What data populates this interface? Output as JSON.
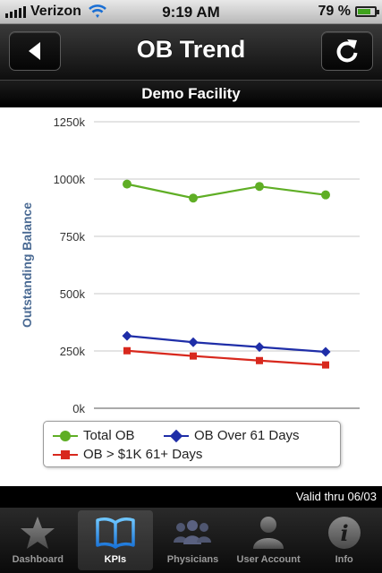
{
  "status_bar": {
    "carrier": "Verizon",
    "time": "9:19 AM",
    "battery": "79 %",
    "battery_level": 0.79
  },
  "nav": {
    "title": "OB Trend",
    "back_icon": "back-arrow-icon",
    "refresh_icon": "refresh-icon"
  },
  "facility": "Demo Facility",
  "chart_data": {
    "type": "line",
    "x": [
      1,
      2,
      3,
      4
    ],
    "ylabel": "Outstanding Balance",
    "ylim": [
      0,
      1250000
    ],
    "yticks": [
      "0k",
      "250k",
      "500k",
      "750k",
      "1000k",
      "1250k"
    ],
    "ytick_values": [
      0,
      250000,
      500000,
      750000,
      1000000,
      1250000
    ],
    "grid": true,
    "legend_position": "bottom",
    "series": [
      {
        "name": "Total OB",
        "color": "#5fae25",
        "marker": "circle",
        "values": [
          978000,
          917000,
          968000,
          931000
        ]
      },
      {
        "name": "OB Over 61 Days",
        "color": "#1f2ea8",
        "marker": "diamond",
        "values": [
          316000,
          288000,
          267000,
          246000
        ]
      },
      {
        "name": "OB > $1K 61+ Days",
        "color": "#d8281d",
        "marker": "square",
        "values": [
          251000,
          228000,
          208000,
          189000
        ]
      }
    ]
  },
  "valid_thru": "Valid thru 06/03",
  "tabs": [
    {
      "label": "Dashboard",
      "icon": "star-icon",
      "active": false
    },
    {
      "label": "KPIs",
      "icon": "book-icon",
      "active": true
    },
    {
      "label": "Physicians",
      "icon": "group-icon",
      "active": false
    },
    {
      "label": "User Account",
      "icon": "person-icon",
      "active": false
    },
    {
      "label": "Info",
      "icon": "info-icon",
      "active": false
    }
  ]
}
